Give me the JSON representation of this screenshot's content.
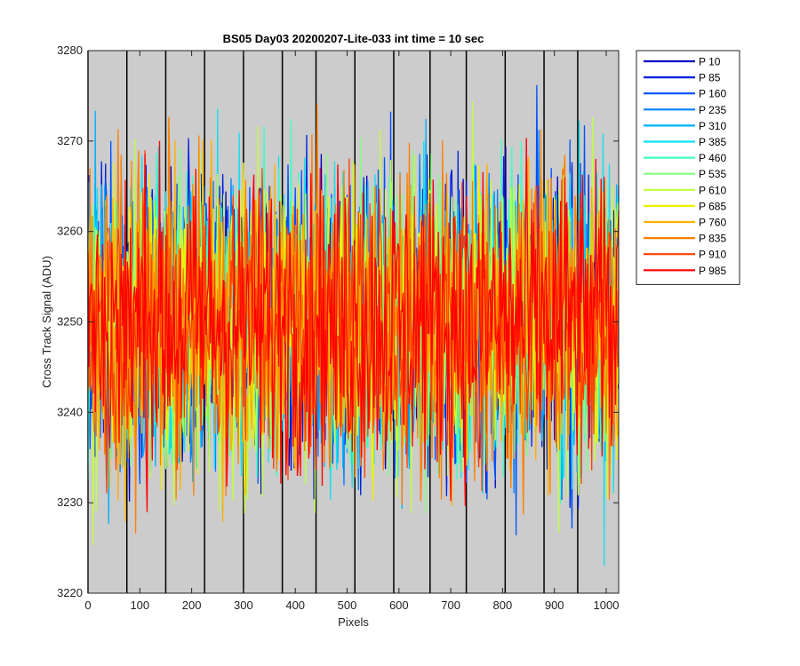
{
  "chart_data": {
    "type": "line",
    "title": "BS05 Day03 20200207-Lite-033 int time = 10 sec",
    "xlabel": "Pixels",
    "ylabel": "Cross Track Signal (ADU)",
    "xlim": [
      0,
      1024
    ],
    "ylim": [
      3220,
      3280
    ],
    "xticks": [
      0,
      100,
      200,
      300,
      400,
      500,
      600,
      700,
      800,
      900,
      1000
    ],
    "yticks": [
      3220,
      3230,
      3240,
      3250,
      3260,
      3270,
      3280
    ],
    "vertical_lines": [
      0,
      75,
      150,
      225,
      300,
      375,
      440,
      515,
      590,
      660,
      730,
      805,
      880,
      945
    ],
    "background": "#cccccc",
    "legend_position": "outside-right",
    "series_center": 3250,
    "series_spread": 9,
    "series": [
      {
        "name": "P 10",
        "color": "#0000bf"
      },
      {
        "name": "P 85",
        "color": "#0020e0"
      },
      {
        "name": "P 160",
        "color": "#0050ff"
      },
      {
        "name": "P 235",
        "color": "#0080ff"
      },
      {
        "name": "P 310",
        "color": "#00b0ff"
      },
      {
        "name": "P 385",
        "color": "#10e0f0"
      },
      {
        "name": "P 460",
        "color": "#40ffc0"
      },
      {
        "name": "P 535",
        "color": "#80ff80"
      },
      {
        "name": "P 610",
        "color": "#c0ff40"
      },
      {
        "name": "P 685",
        "color": "#f0f000"
      },
      {
        "name": "P 760",
        "color": "#ffb000"
      },
      {
        "name": "P 835",
        "color": "#ff8000"
      },
      {
        "name": "P 910",
        "color": "#ff4000"
      },
      {
        "name": "P 985",
        "color": "#ff0000"
      }
    ]
  }
}
